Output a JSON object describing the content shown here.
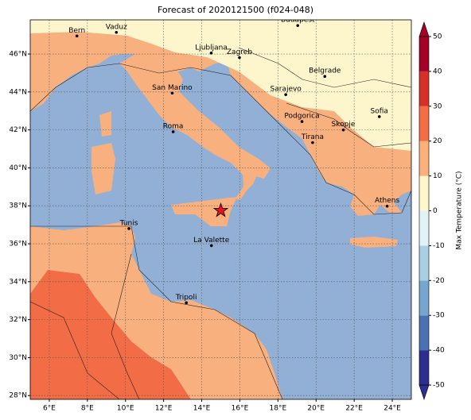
{
  "title": "Forecast of 2020121500 (f024-048)",
  "map": {
    "xlim": [
      5,
      25
    ],
    "ylim": [
      27.8,
      47.8
    ],
    "xticks": [
      {
        "value": 6,
        "label": "6°E"
      },
      {
        "value": 8,
        "label": "8°E"
      },
      {
        "value": 10,
        "label": "10°E"
      },
      {
        "value": 12,
        "label": "12°E"
      },
      {
        "value": 14,
        "label": "14°E"
      },
      {
        "value": 16,
        "label": "16°E"
      },
      {
        "value": 18,
        "label": "18°E"
      },
      {
        "value": 20,
        "label": "20°E"
      },
      {
        "value": 22,
        "label": "22°E"
      },
      {
        "value": 24,
        "label": "24°E"
      }
    ],
    "yticks": [
      {
        "value": 28,
        "label": "28°N"
      },
      {
        "value": 30,
        "label": "30°N"
      },
      {
        "value": 32,
        "label": "32°N"
      },
      {
        "value": 34,
        "label": "34°N"
      },
      {
        "value": 36,
        "label": "36°N"
      },
      {
        "value": 38,
        "label": "38°N"
      },
      {
        "value": 40,
        "label": "40°N"
      },
      {
        "value": 42,
        "label": "42°N"
      },
      {
        "value": 44,
        "label": "44°N"
      },
      {
        "value": 46,
        "label": "46°N"
      }
    ],
    "grid": true,
    "cities": [
      {
        "name": "Bern",
        "lon": 7.45,
        "lat": 46.95
      },
      {
        "name": "Vaduz",
        "lon": 9.52,
        "lat": 47.14
      },
      {
        "name": "Budapest",
        "lon": 19.04,
        "lat": 47.5
      },
      {
        "name": "Ljubljana",
        "lon": 14.5,
        "lat": 46.05
      },
      {
        "name": "Zagreb",
        "lon": 15.98,
        "lat": 45.81
      },
      {
        "name": "Belgrade",
        "lon": 20.46,
        "lat": 44.82
      },
      {
        "name": "San Marino",
        "lon": 12.45,
        "lat": 43.94
      },
      {
        "name": "Sarajevo",
        "lon": 18.41,
        "lat": 43.86
      },
      {
        "name": "Sofia",
        "lon": 23.32,
        "lat": 42.7
      },
      {
        "name": "Podgorica",
        "lon": 19.26,
        "lat": 42.44
      },
      {
        "name": "Skopje",
        "lon": 21.43,
        "lat": 42.0
      },
      {
        "name": "Roma",
        "lon": 12.5,
        "lat": 41.9
      },
      {
        "name": "Tirana",
        "lon": 19.82,
        "lat": 41.33
      },
      {
        "name": "Athens",
        "lon": 23.73,
        "lat": 37.98
      },
      {
        "name": "Tunis",
        "lon": 10.18,
        "lat": 36.8
      },
      {
        "name": "La Valette",
        "lon": 14.51,
        "lat": 35.9
      },
      {
        "name": "Tripoli",
        "lon": 13.19,
        "lat": 32.89
      }
    ],
    "marker": {
      "lon": 15.0,
      "lat": 37.75,
      "color": "#e8141c"
    }
  },
  "colorbar": {
    "label": "Max Temperature (°C)",
    "ticks": [
      -50,
      -40,
      -30,
      -20,
      -10,
      0,
      10,
      20,
      30,
      40,
      50
    ],
    "colors": [
      "#2d2f8e",
      "#4a72b3",
      "#74a6cf",
      "#a8d0e4",
      "#e2f3f8",
      "#fdf7c9",
      "#fdb07a",
      "#f46d43",
      "#d73027",
      "#a50026"
    ]
  }
}
